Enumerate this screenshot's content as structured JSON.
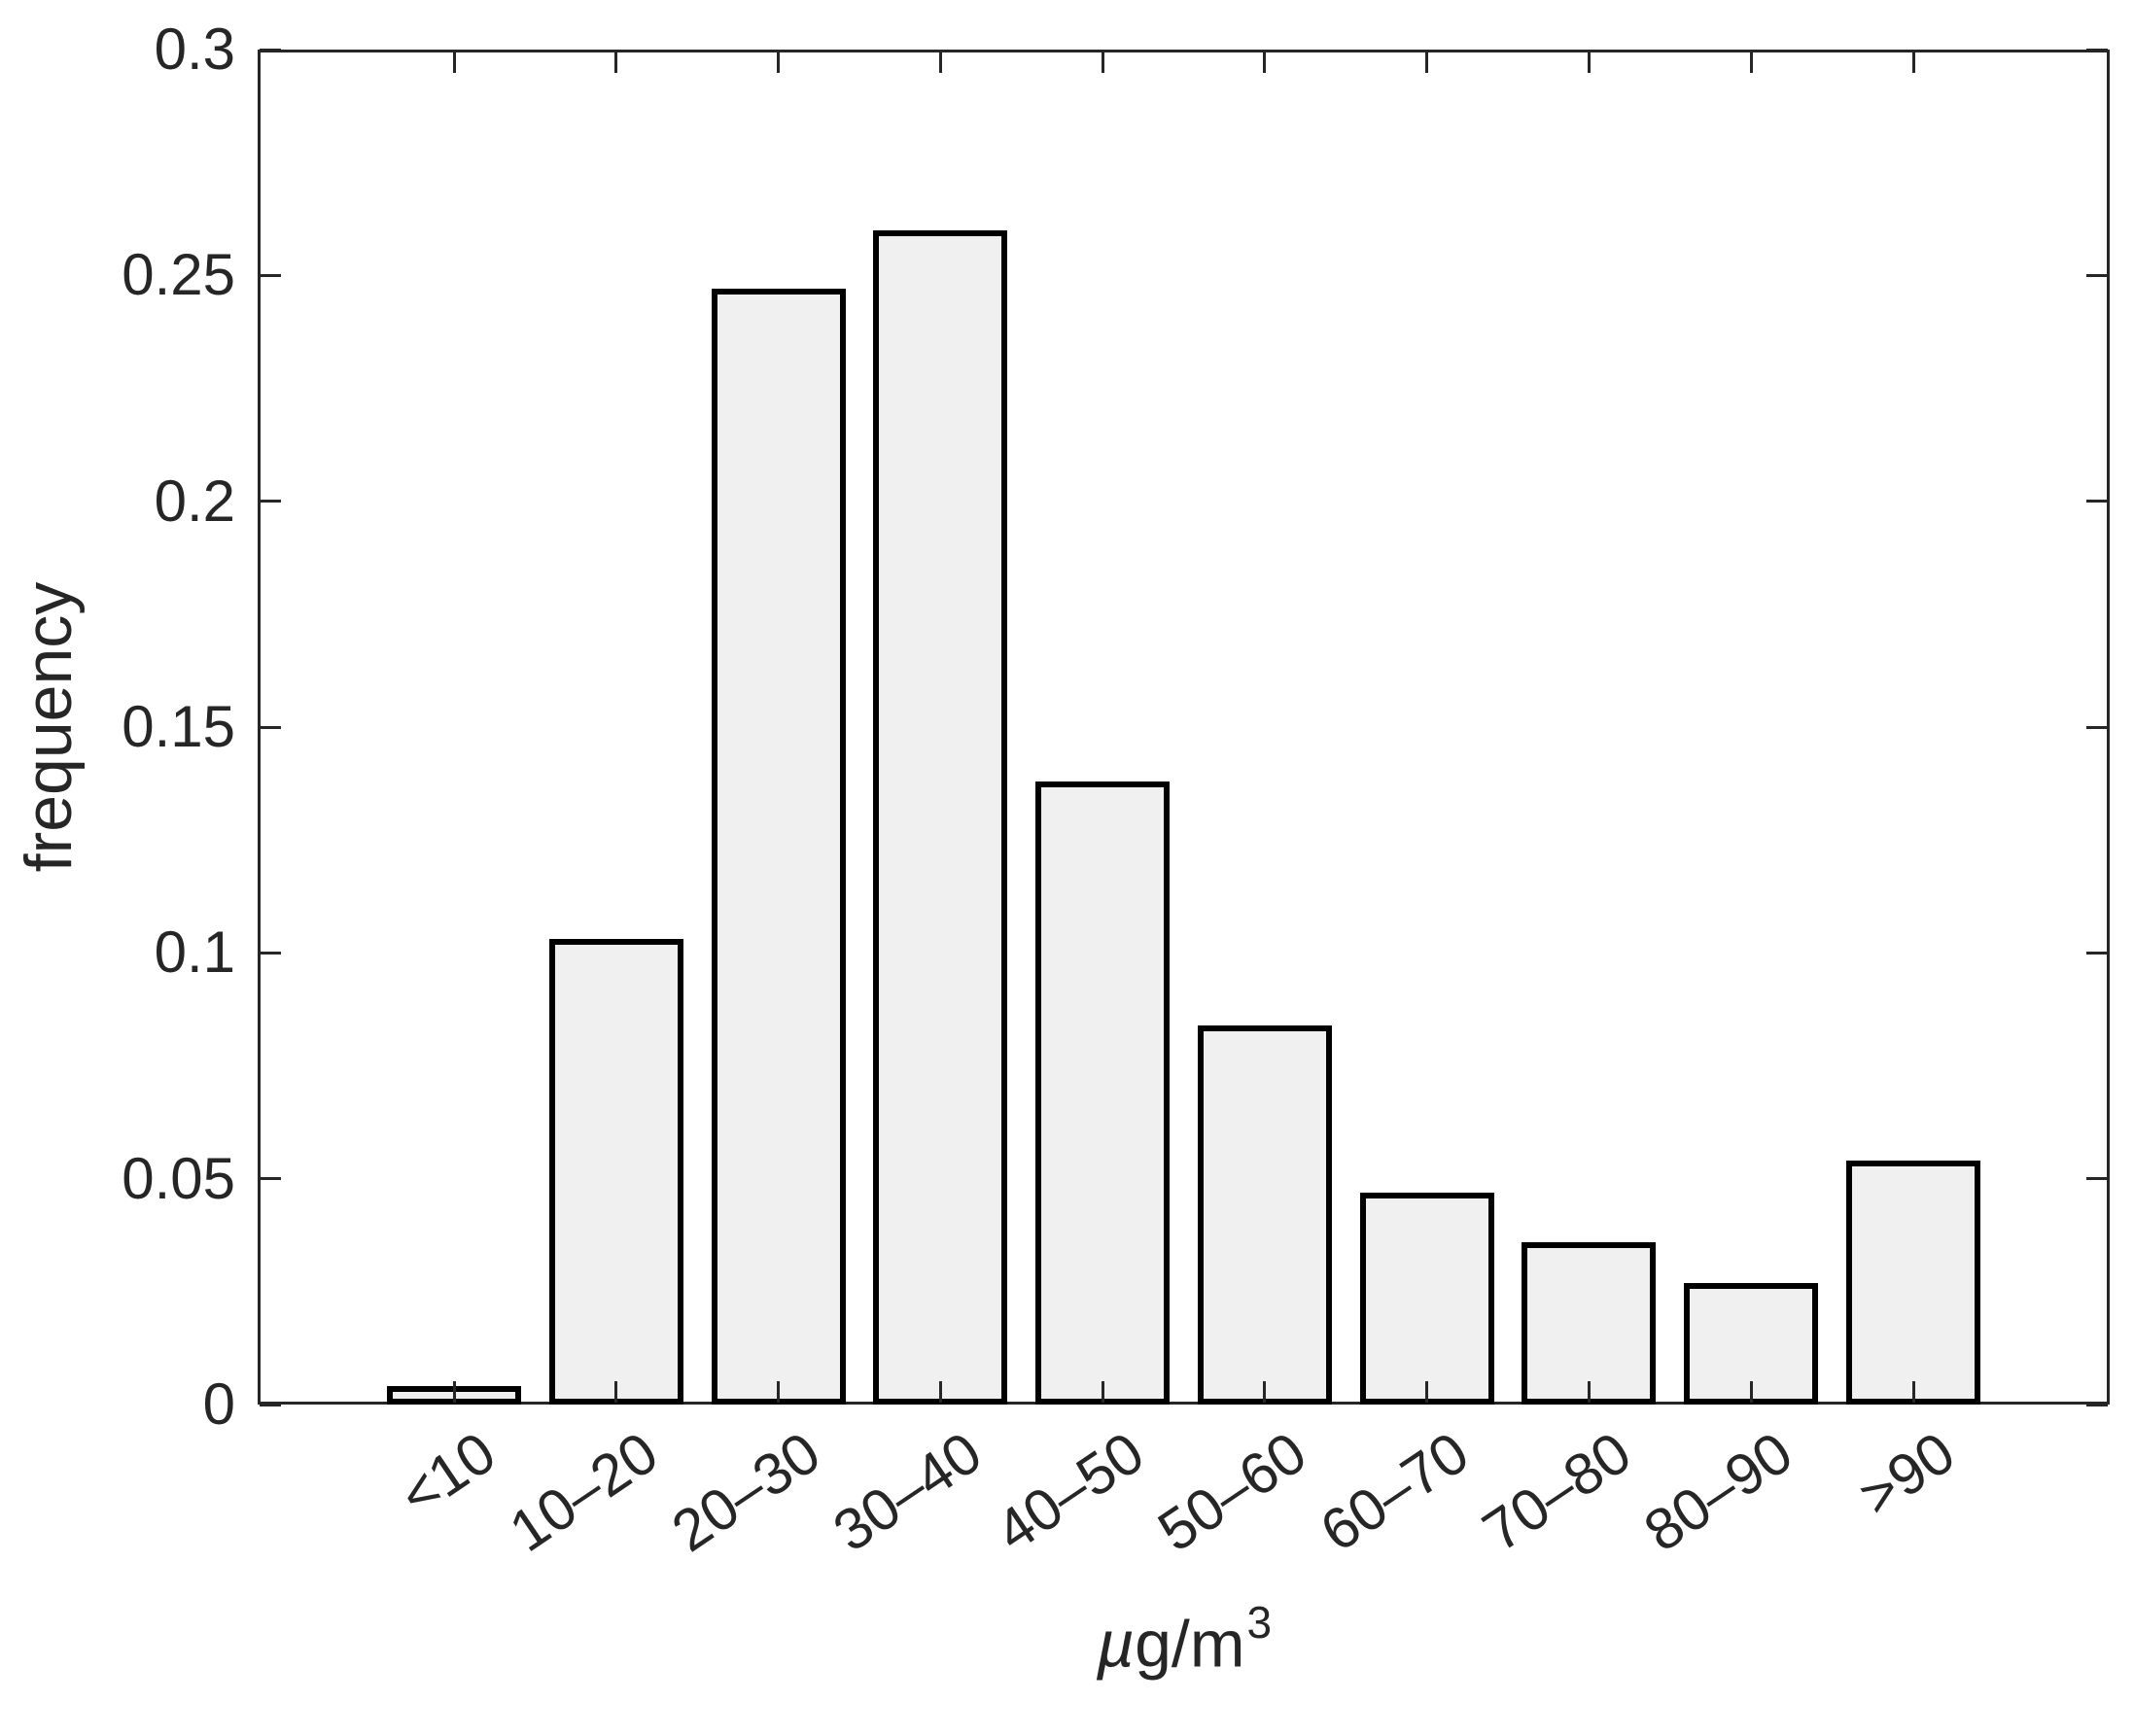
{
  "figure": {
    "background": "#ffffff",
    "axis_color": "#262626",
    "text_color": "#262626",
    "bar_fill": "#f0f0f0",
    "bar_edge": "#000000"
  },
  "chart_data": {
    "type": "bar",
    "title": "",
    "categories": [
      "<10",
      "10–20",
      "20–30",
      "30–40",
      "40–50",
      "50–60",
      "60–70",
      "70–80",
      "80–90",
      ">90"
    ],
    "values": [
      0.004,
      0.103,
      0.247,
      0.26,
      0.138,
      0.084,
      0.047,
      0.036,
      0.027,
      0.054
    ],
    "xlabel": "µg/m³",
    "ylabel": "frequency",
    "ylim": [
      0,
      0.3
    ],
    "yticks": [
      0,
      0.05,
      0.1,
      0.15,
      0.2,
      0.25,
      0.3
    ],
    "ytick_labels": [
      "0",
      "0.05",
      "0.1",
      "0.15",
      "0.2",
      "0.25",
      "0.3"
    ],
    "grid": false,
    "legend": "none",
    "tick_direction": "in",
    "box": true
  },
  "xlabel_parts": {
    "mu": "µ",
    "body": "g/m",
    "sup": "3"
  }
}
